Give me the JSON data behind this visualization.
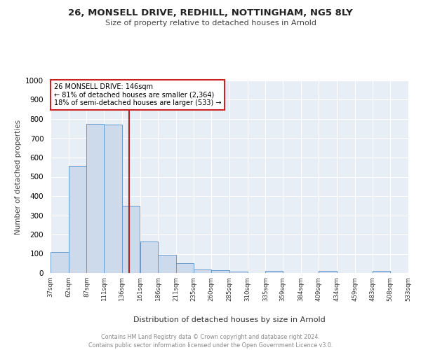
{
  "title_line1": "26, MONSELL DRIVE, REDHILL, NOTTINGHAM, NG5 8LY",
  "title_line2": "Size of property relative to detached houses in Arnold",
  "xlabel": "Distribution of detached houses by size in Arnold",
  "ylabel": "Number of detached properties",
  "bar_edges": [
    37,
    62,
    87,
    111,
    136,
    161,
    186,
    211,
    235,
    260,
    285,
    310,
    335,
    359,
    384,
    409,
    434,
    459,
    483,
    508,
    533
  ],
  "bar_heights": [
    110,
    555,
    775,
    770,
    350,
    165,
    95,
    52,
    18,
    14,
    8,
    0,
    10,
    0,
    0,
    10,
    0,
    0,
    10,
    0,
    0
  ],
  "bar_color": "#ccdaeb",
  "bar_edge_color": "#6699cc",
  "vline_x": 146,
  "vline_color": "#aa2222",
  "annotation_title": "26 MONSELL DRIVE: 146sqm",
  "annotation_line2": "← 81% of detached houses are smaller (2,364)",
  "annotation_line3": "18% of semi-detached houses are larger (533) →",
  "annotation_box_color": "#cc2222",
  "annotation_fill": "white",
  "ylim": [
    0,
    1000
  ],
  "yticks": [
    0,
    100,
    200,
    300,
    400,
    500,
    600,
    700,
    800,
    900,
    1000
  ],
  "tick_labels": [
    "37sqm",
    "62sqm",
    "87sqm",
    "111sqm",
    "136sqm",
    "161sqm",
    "186sqm",
    "211sqm",
    "235sqm",
    "260sqm",
    "285sqm",
    "310sqm",
    "335sqm",
    "359sqm",
    "384sqm",
    "409sqm",
    "434sqm",
    "459sqm",
    "483sqm",
    "508sqm",
    "533sqm"
  ],
  "footer_line1": "Contains HM Land Registry data © Crown copyright and database right 2024.",
  "footer_line2": "Contains public sector information licensed under the Open Government Licence v3.0.",
  "plot_bg_color": "#e8eef6"
}
